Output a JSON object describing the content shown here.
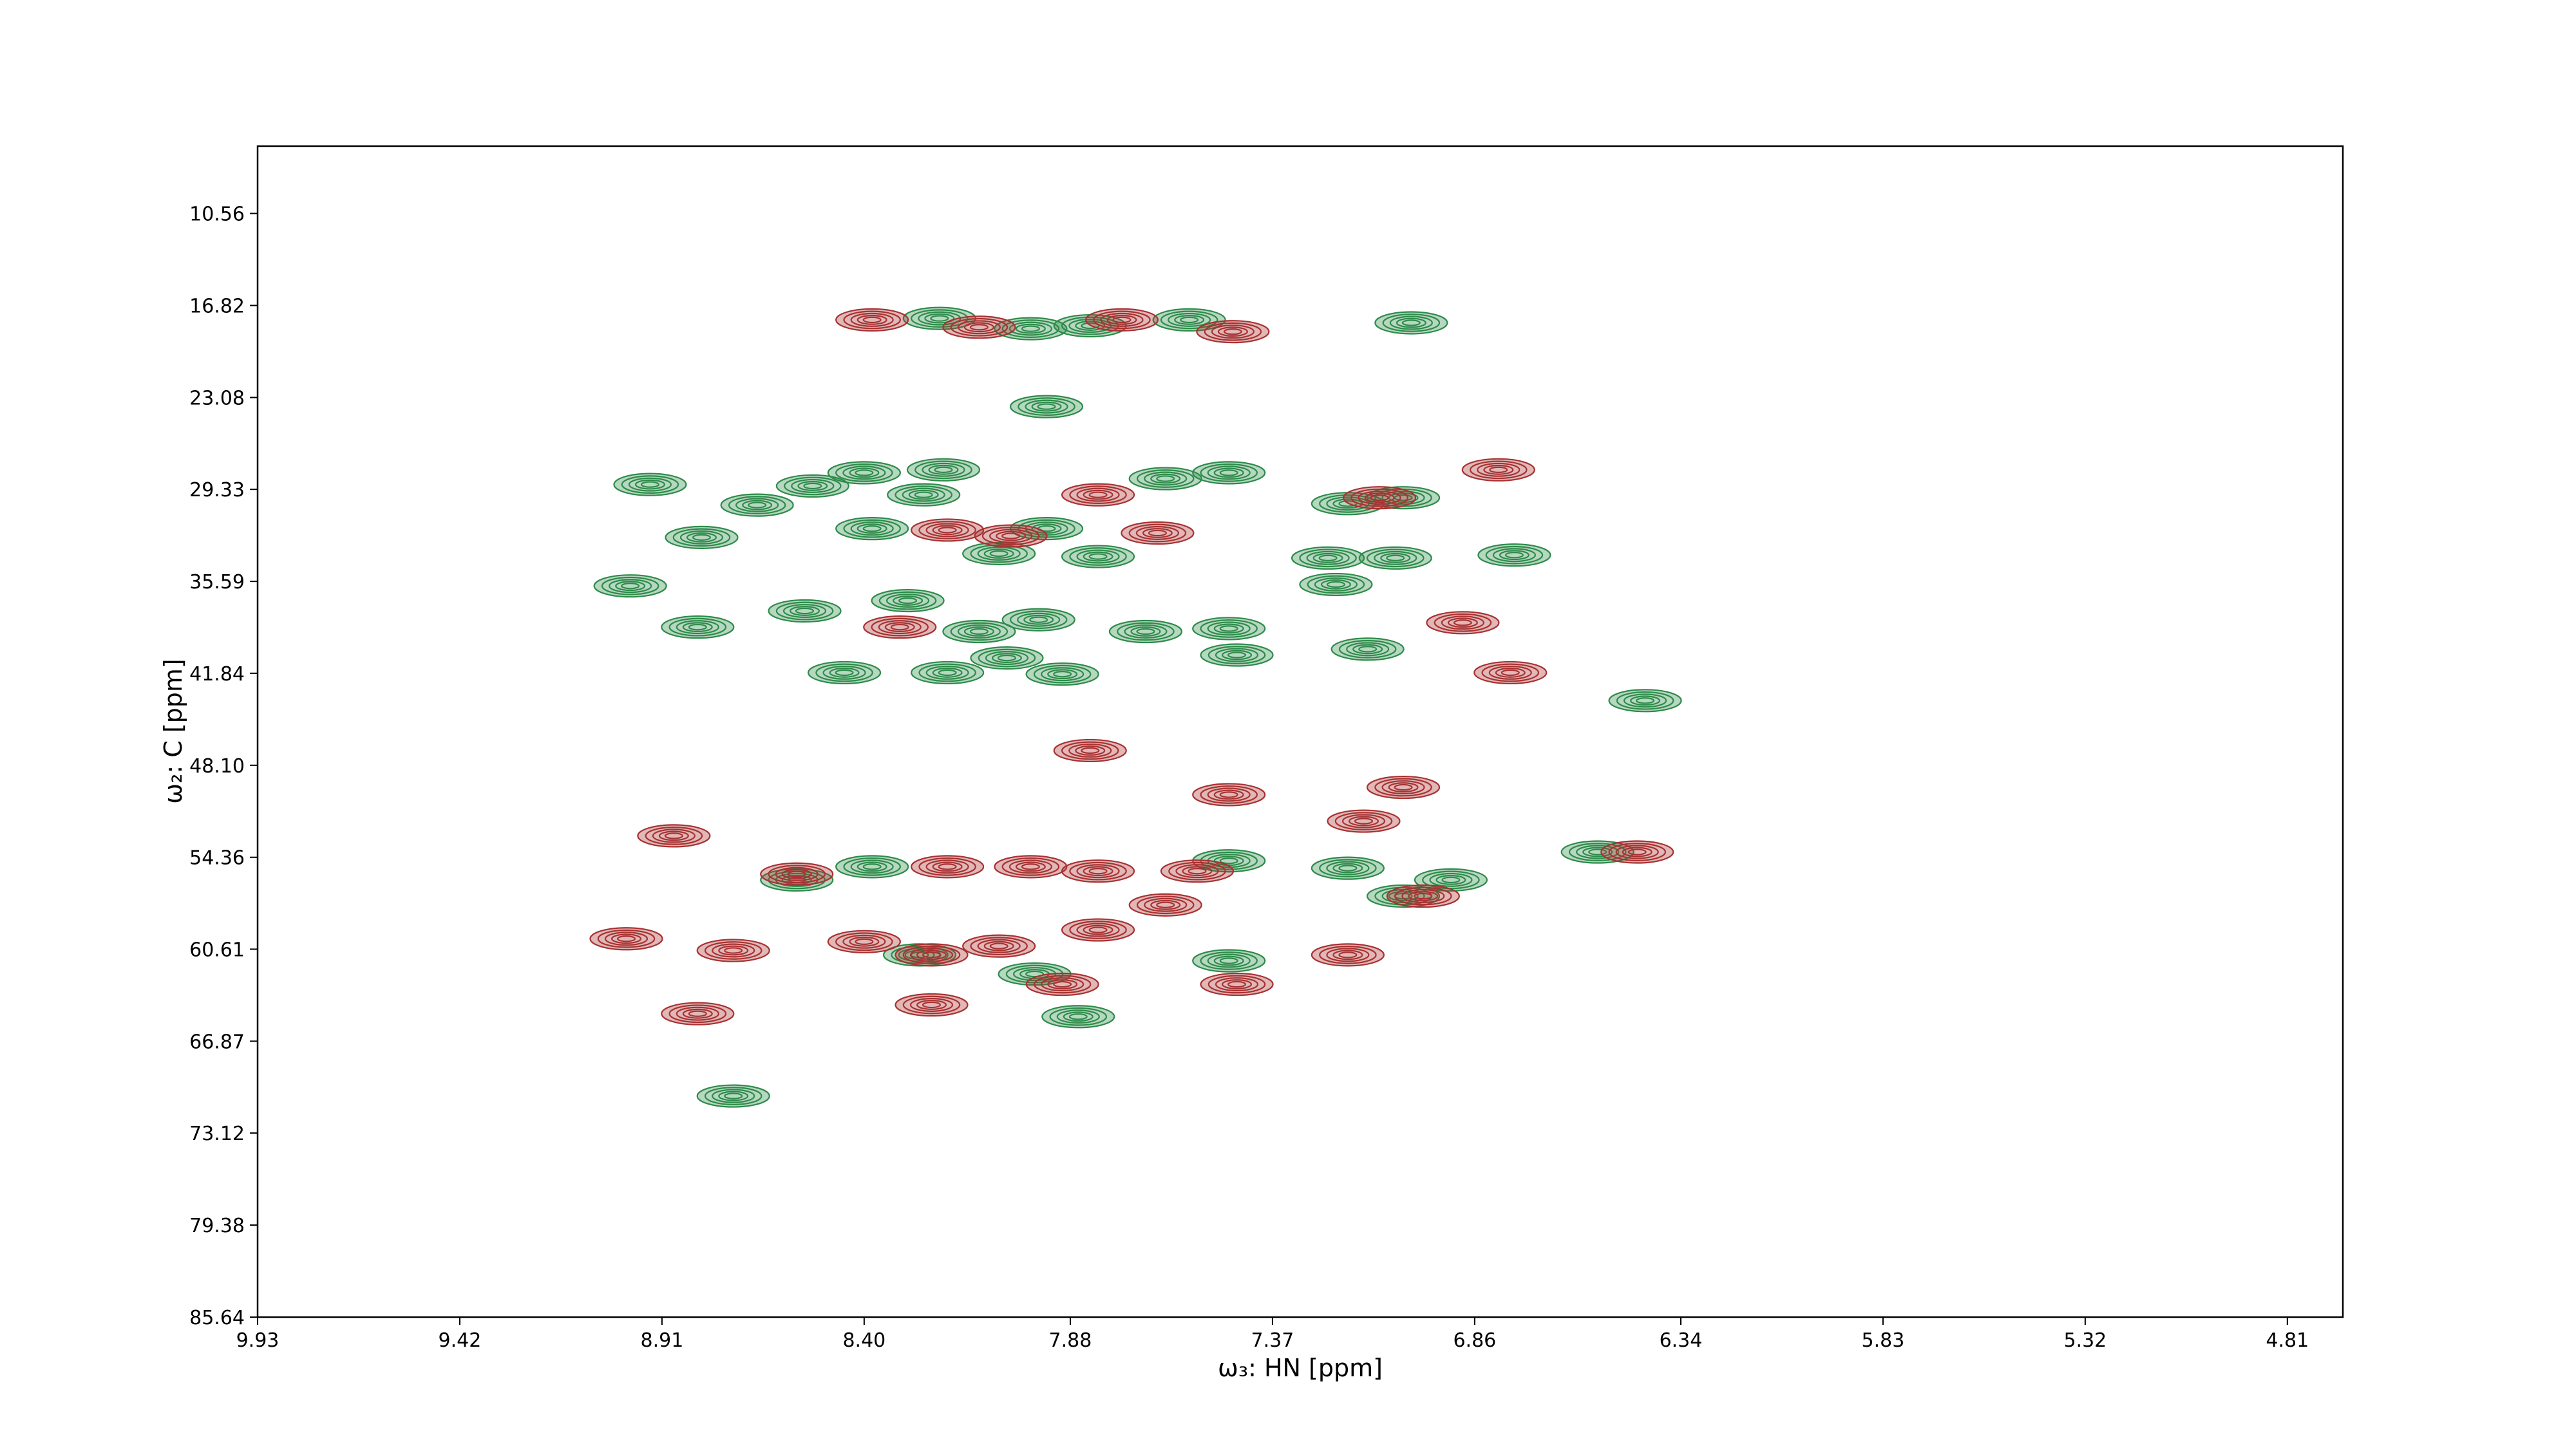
{
  "chart_data": {
    "type": "contour",
    "x_label": "ω₃: HN [ppm]",
    "y_label": "ω₂: C [ppm]",
    "xlim": [
      9.93,
      4.67
    ],
    "ylim": [
      85.64,
      5.98
    ],
    "xticks": [
      9.93,
      9.42,
      8.91,
      {
        "value": 8.4,
        "label": "8.40"
      },
      7.88,
      7.37,
      6.86,
      6.34,
      5.83,
      5.32,
      4.81
    ],
    "yticks": [
      10.56,
      16.82,
      23.08,
      29.33,
      35.59,
      41.84,
      {
        "value": 48.1,
        "label": "48.10"
      },
      54.36,
      60.61,
      66.87,
      73.12,
      79.38,
      85.64
    ],
    "series": [
      {
        "color": "#2e8b4a",
        "x": [
          8.21,
          7.98,
          7.83,
          7.58,
          7.02,
          7.94,
          8.2,
          8.94,
          8.67,
          8.53,
          8.4,
          8.25,
          7.64,
          7.48,
          7.18,
          7.04,
          7.94,
          8.06,
          7.81,
          8.38,
          8.81,
          7.23,
          7.06,
          6.76,
          8.99,
          8.82,
          8.55,
          8.29,
          8.11,
          7.96,
          7.69,
          7.48,
          7.21,
          8.45,
          8.19,
          8.04,
          7.9,
          7.46,
          7.13,
          6.43,
          8.57,
          8.38,
          7.48,
          7.18,
          6.92,
          7.04,
          7.48,
          7.86,
          8.73,
          6.55,
          8.26,
          7.97
        ],
        "values": [
          17.7,
          18.4,
          18.2,
          17.8,
          18.0,
          23.7,
          28.0,
          29.0,
          30.4,
          29.1,
          28.2,
          29.7,
          28.6,
          28.2,
          30.3,
          29.9,
          32.0,
          33.7,
          33.9,
          32.0,
          32.6,
          34.0,
          34.0,
          33.8,
          35.9,
          38.7,
          37.6,
          36.9,
          39.0,
          38.2,
          39.0,
          38.8,
          35.8,
          41.8,
          41.8,
          40.8,
          41.9,
          40.6,
          40.2,
          43.7,
          55.9,
          55.0,
          54.6,
          55.1,
          55.9,
          57.0,
          61.4,
          65.2,
          70.6,
          54.0,
          61.0,
          62.3
        ]
      },
      {
        "color": "#a83232",
        "x": [
          8.38,
          8.11,
          7.75,
          7.47,
          8.19,
          8.03,
          7.81,
          7.66,
          7.1,
          6.8,
          8.31,
          6.89,
          6.77,
          7.83,
          8.88,
          6.45,
          7.48,
          7.04,
          7.14,
          8.57,
          8.19,
          7.98,
          7.81,
          7.56,
          6.99,
          9.0,
          8.73,
          8.4,
          8.23,
          8.06,
          7.81,
          7.64,
          7.18,
          7.46,
          8.23,
          8.82,
          7.9
        ],
        "values": [
          17.8,
          18.3,
          17.8,
          18.6,
          32.1,
          32.5,
          29.7,
          32.3,
          29.9,
          28.0,
          38.7,
          38.4,
          41.8,
          47.1,
          52.9,
          54.0,
          50.1,
          49.6,
          51.9,
          55.5,
          55.0,
          55.0,
          55.3,
          55.3,
          57.0,
          59.9,
          60.7,
          60.1,
          61.0,
          60.4,
          59.3,
          57.6,
          61.0,
          63.0,
          64.4,
          65.0,
          63.0
        ]
      }
    ]
  }
}
